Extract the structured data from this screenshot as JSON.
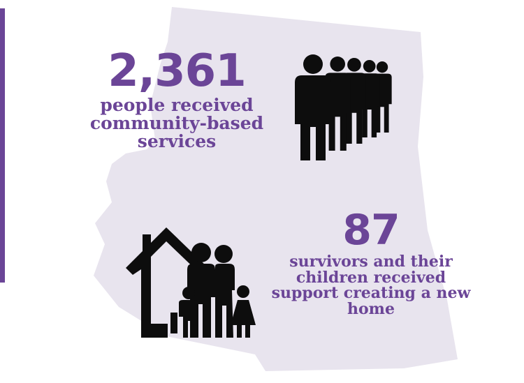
{
  "colors": {
    "accent": "#6b4597",
    "map_fill": "#e8e4ee",
    "icon": "#0d0d0d"
  },
  "stats": [
    {
      "number": "2,361",
      "label": "people received community-based services",
      "icon": "people-line-icon"
    },
    {
      "number": "87",
      "label": "survivors and their children received support creating a new home",
      "icon": "family-home-icon"
    }
  ]
}
